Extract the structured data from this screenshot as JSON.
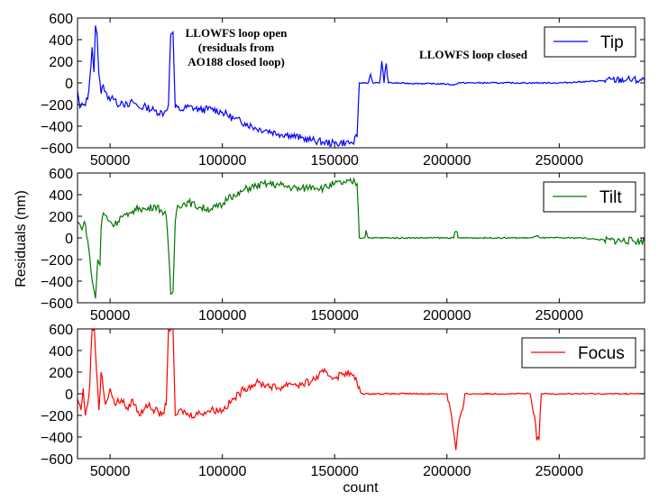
{
  "chart_data": [
    {
      "type": "line",
      "title": "",
      "legend": "top-right",
      "xlim": [
        35500,
        288000
      ],
      "ylim": [
        -600,
        600
      ],
      "yticks": [
        "600",
        "400",
        "200",
        "0",
        "−200",
        "−400",
        "−600"
      ],
      "xticks": [
        "50000",
        "100000",
        "150000",
        "200000",
        "250000"
      ],
      "series": [
        {
          "name": "Tip",
          "color": "#0000ff",
          "points": [
            [
              35500,
              -80
            ],
            [
              36500,
              -230
            ],
            [
              38500,
              -200
            ],
            [
              40000,
              -150
            ],
            [
              41000,
              50
            ],
            [
              42000,
              330
            ],
            [
              42800,
              100
            ],
            [
              43500,
              530
            ],
            [
              44200,
              450
            ],
            [
              45000,
              80
            ],
            [
              46000,
              -100
            ],
            [
              47000,
              -20
            ],
            [
              48000,
              -80
            ],
            [
              49000,
              -150
            ],
            [
              51000,
              -120
            ],
            [
              53000,
              -200
            ],
            [
              55000,
              -170
            ],
            [
              58000,
              -220
            ],
            [
              60000,
              -170
            ],
            [
              63000,
              -230
            ],
            [
              66000,
              -220
            ],
            [
              70000,
              -260
            ],
            [
              74000,
              -280
            ],
            [
              76000,
              -200
            ],
            [
              77000,
              450
            ],
            [
              78000,
              470
            ],
            [
              79000,
              -230
            ],
            [
              82000,
              -250
            ],
            [
              85000,
              -220
            ],
            [
              90000,
              -250
            ],
            [
              95000,
              -240
            ],
            [
              100000,
              -270
            ],
            [
              105000,
              -330
            ],
            [
              110000,
              -370
            ],
            [
              115000,
              -420
            ],
            [
              120000,
              -440
            ],
            [
              125000,
              -470
            ],
            [
              130000,
              -480
            ],
            [
              135000,
              -510
            ],
            [
              140000,
              -530
            ],
            [
              145000,
              -550
            ],
            [
              150000,
              -560
            ],
            [
              155000,
              -550
            ],
            [
              158000,
              -560
            ],
            [
              160000,
              -500
            ],
            [
              161000,
              0
            ],
            [
              165000,
              0
            ],
            [
              166000,
              80
            ],
            [
              167000,
              0
            ],
            [
              170000,
              0
            ],
            [
              171000,
              200
            ],
            [
              172000,
              0
            ],
            [
              173000,
              180
            ],
            [
              174000,
              0
            ],
            [
              200000,
              -10
            ],
            [
              203000,
              -20
            ],
            [
              205000,
              0
            ],
            [
              250000,
              0
            ],
            [
              270000,
              20
            ],
            [
              280000,
              30
            ],
            [
              288000,
              20
            ]
          ]
        }
      ],
      "annotations": [
        "LLOWFS loop open",
        "(residuals from",
        "AO188 closed loop)",
        "LLOWFS loop closed"
      ]
    },
    {
      "type": "line",
      "legend": "top-right",
      "xlim": [
        35500,
        288000
      ],
      "ylim": [
        -600,
        600
      ],
      "ylabel": "Residuals (nm)",
      "yticks": [
        "600",
        "400",
        "200",
        "0",
        "−200",
        "−400",
        "−600"
      ],
      "xticks": [
        "50000",
        "100000",
        "150000",
        "200000",
        "250000"
      ],
      "series": [
        {
          "name": "Tilt",
          "color": "#007700",
          "points": [
            [
              35500,
              150
            ],
            [
              37000,
              100
            ],
            [
              39000,
              130
            ],
            [
              40500,
              -100
            ],
            [
              41500,
              -300
            ],
            [
              42500,
              -450
            ],
            [
              43500,
              -560
            ],
            [
              44500,
              -200
            ],
            [
              45500,
              -250
            ],
            [
              46000,
              100
            ],
            [
              47000,
              230
            ],
            [
              50000,
              150
            ],
            [
              52000,
              120
            ],
            [
              55000,
              200
            ],
            [
              58000,
              200
            ],
            [
              60000,
              250
            ],
            [
              63000,
              280
            ],
            [
              66000,
              260
            ],
            [
              70000,
              300
            ],
            [
              73000,
              250
            ],
            [
              75000,
              200
            ],
            [
              76000,
              -100
            ],
            [
              77000,
              -520
            ],
            [
              78000,
              -500
            ],
            [
              79000,
              150
            ],
            [
              80000,
              300
            ],
            [
              85000,
              330
            ],
            [
              90000,
              280
            ],
            [
              95000,
              270
            ],
            [
              100000,
              300
            ],
            [
              103000,
              400
            ],
            [
              106000,
              380
            ],
            [
              110000,
              450
            ],
            [
              115000,
              480
            ],
            [
              120000,
              500
            ],
            [
              125000,
              490
            ],
            [
              130000,
              470
            ],
            [
              135000,
              450
            ],
            [
              140000,
              480
            ],
            [
              145000,
              460
            ],
            [
              150000,
              500
            ],
            [
              155000,
              510
            ],
            [
              159000,
              520
            ],
            [
              160000,
              500
            ],
            [
              161000,
              0
            ],
            [
              163000,
              0
            ],
            [
              164000,
              70
            ],
            [
              165000,
              0
            ],
            [
              203000,
              0
            ],
            [
              204000,
              60
            ],
            [
              205000,
              0
            ],
            [
              238000,
              0
            ],
            [
              240000,
              20
            ],
            [
              242000,
              0
            ],
            [
              260000,
              0
            ],
            [
              270000,
              -20
            ],
            [
              288000,
              -30
            ]
          ]
        }
      ]
    },
    {
      "type": "line",
      "legend": "top-right",
      "xlim": [
        35500,
        288000
      ],
      "ylim": [
        -600,
        600
      ],
      "xlabel": "count",
      "yticks": [
        "600",
        "400",
        "200",
        "0",
        "−200",
        "−400",
        "−600"
      ],
      "xticks": [
        "50000",
        "100000",
        "150000",
        "200000",
        "250000"
      ],
      "series": [
        {
          "name": "Focus",
          "color": "#ff0000",
          "points": [
            [
              35500,
              -50
            ],
            [
              37000,
              -150
            ],
            [
              38000,
              50
            ],
            [
              39000,
              -200
            ],
            [
              40000,
              -100
            ],
            [
              41000,
              100
            ],
            [
              42000,
              600
            ],
            [
              43000,
              600
            ],
            [
              44000,
              200
            ],
            [
              45000,
              -150
            ],
            [
              46000,
              200
            ],
            [
              48000,
              -100
            ],
            [
              50000,
              50
            ],
            [
              52000,
              -100
            ],
            [
              55000,
              -50
            ],
            [
              58000,
              -150
            ],
            [
              60000,
              -50
            ],
            [
              63000,
              -200
            ],
            [
              66000,
              -100
            ],
            [
              70000,
              -150
            ],
            [
              73000,
              -200
            ],
            [
              75000,
              -100
            ],
            [
              76000,
              600
            ],
            [
              78000,
              600
            ],
            [
              79000,
              -200
            ],
            [
              82000,
              -150
            ],
            [
              85000,
              -200
            ],
            [
              90000,
              -180
            ],
            [
              95000,
              -150
            ],
            [
              100000,
              -150
            ],
            [
              105000,
              -50
            ],
            [
              110000,
              50
            ],
            [
              115000,
              100
            ],
            [
              120000,
              80
            ],
            [
              125000,
              50
            ],
            [
              130000,
              100
            ],
            [
              135000,
              80
            ],
            [
              140000,
              120
            ],
            [
              145000,
              200
            ],
            [
              150000,
              150
            ],
            [
              155000,
              200
            ],
            [
              158000,
              170
            ],
            [
              160000,
              100
            ],
            [
              162000,
              0
            ],
            [
              200000,
              0
            ],
            [
              202000,
              -200
            ],
            [
              204000,
              -520
            ],
            [
              205000,
              -300
            ],
            [
              207000,
              -150
            ],
            [
              208000,
              0
            ],
            [
              237000,
              0
            ],
            [
              239000,
              -200
            ],
            [
              240000,
              -430
            ],
            [
              241000,
              -420
            ],
            [
              242000,
              0
            ],
            [
              288000,
              0
            ]
          ]
        }
      ]
    }
  ]
}
